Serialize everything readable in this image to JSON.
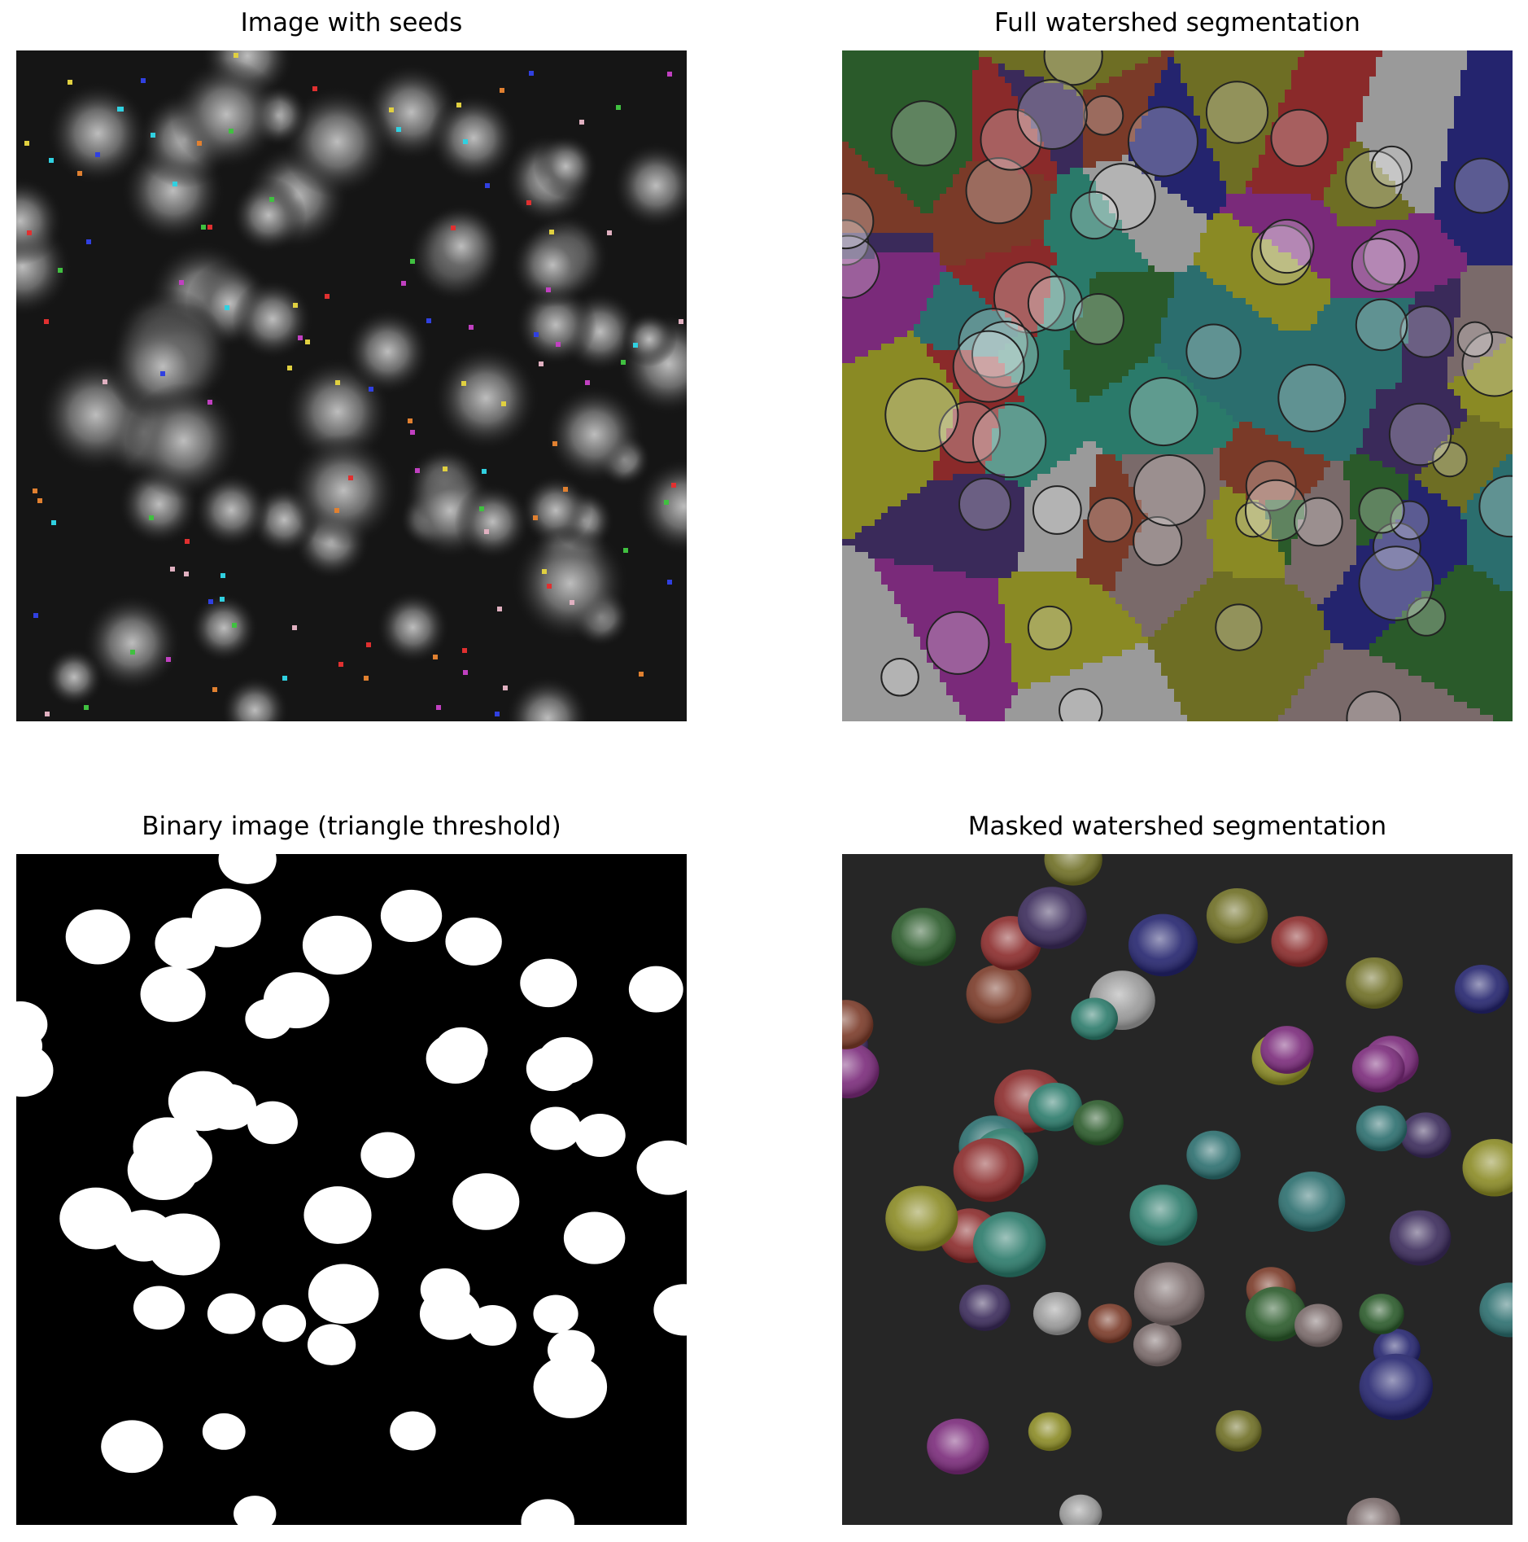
{
  "figure": {
    "panels": [
      {
        "title": "Image with seeds"
      },
      {
        "title": "Full watershed segmentation"
      },
      {
        "title": "Binary image (triangle threshold)"
      },
      {
        "title": "Masked watershed segmentation"
      }
    ]
  },
  "palette": {
    "background_dark": "#151515",
    "binary_foreground": "#ffffff",
    "binary_background": "#000000",
    "segment_colors": [
      "#8a8a24",
      "#2b6e6e",
      "#7a2a7a",
      "#24246e",
      "#6e6e24",
      "#7a3a28",
      "#2a5a2a",
      "#7a6a6a",
      "#8a2a2a",
      "#3a2a5a",
      "#9a9a9a",
      "#2a7a6a"
    ],
    "seed_colors": [
      "#e03030",
      "#30d0e0",
      "#c040c0",
      "#e0d040",
      "#40c040",
      "#e08030",
      "#3040e0",
      "#e0b0c0"
    ]
  }
}
